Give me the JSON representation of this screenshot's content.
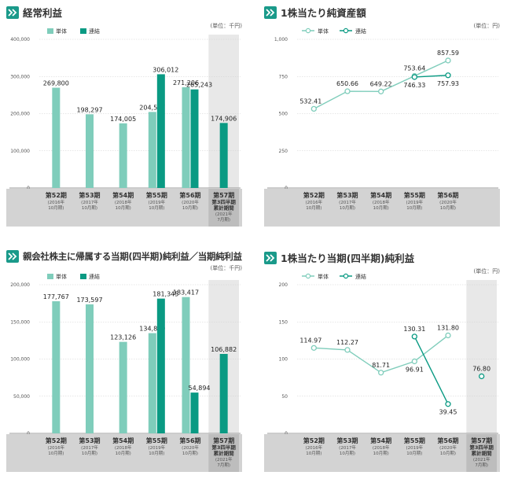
{
  "colors": {
    "single": "#7fcdbb",
    "consolidated": "#0a9a83",
    "footer": "#d3d3d3",
    "accent": "#1a9a8a",
    "shade": "#e8e8e8"
  },
  "icon": "double-chevron-right-icon",
  "legend": {
    "single": "単体",
    "consolidated": "連結"
  },
  "chart_data": [
    {
      "type": "bar",
      "title": "経常利益",
      "unit": "(単位：千円)",
      "ylim": [
        0,
        400000
      ],
      "yticks": [
        "0",
        "100,000",
        "200,000",
        "300,000",
        "400,000"
      ],
      "categories": [
        {
          "name": "第52期",
          "sub": [
            "(2016年",
            "10月期)"
          ]
        },
        {
          "name": "第53期",
          "sub": [
            "(2017年",
            "10月期)"
          ]
        },
        {
          "name": "第54期",
          "sub": [
            "(2018年",
            "10月期)"
          ]
        },
        {
          "name": "第55期",
          "sub": [
            "(2019年",
            "10月期)"
          ]
        },
        {
          "name": "第56期",
          "sub": [
            "(2020年",
            "10月期)"
          ]
        },
        {
          "name": "第57期",
          "sub2": [
            "第3四半期",
            "累計期間"
          ],
          "sub": [
            "(2021年",
            "7月期)"
          ]
        }
      ],
      "series": [
        {
          "name": "単体",
          "values": [
            269800,
            198297,
            174005,
            204587,
            271206,
            null
          ],
          "labels": [
            "269,800",
            "198,297",
            "174,005",
            "204,587",
            "271,206",
            ""
          ]
        },
        {
          "name": "連結",
          "values": [
            null,
            null,
            null,
            306012,
            265243,
            174906
          ],
          "labels": [
            "",
            "",
            "",
            "306,012",
            "265,243",
            "174,906"
          ]
        }
      ]
    },
    {
      "type": "line",
      "title": "1株当たり純資産額",
      "unit": "(単位：円)",
      "ylim": [
        0,
        1000
      ],
      "yticks": [
        "0",
        "250",
        "500",
        "750",
        "1,000"
      ],
      "categories": [
        {
          "name": "第52期",
          "sub": [
            "(2016年",
            "10月期)"
          ]
        },
        {
          "name": "第53期",
          "sub": [
            "(2017年",
            "10月期)"
          ]
        },
        {
          "name": "第54期",
          "sub": [
            "(2018年",
            "10月期)"
          ]
        },
        {
          "name": "第55期",
          "sub": [
            "(2019年",
            "10月期)"
          ]
        },
        {
          "name": "第56期",
          "sub": [
            "(2020年",
            "10月期)"
          ]
        }
      ],
      "series": [
        {
          "name": "単体",
          "values": [
            532.41,
            650.66,
            649.22,
            753.64,
            857.59
          ],
          "labels": [
            "532.41",
            "650.66",
            "649.22",
            "753.64",
            "857.59"
          ]
        },
        {
          "name": "連結",
          "values": [
            null,
            null,
            null,
            746.33,
            757.93
          ],
          "labels": [
            "",
            "",
            "",
            "746.33",
            "757.93"
          ]
        }
      ]
    },
    {
      "type": "bar",
      "title": "親会社株主に帰属する当期(四半期)純利益／当期純利益",
      "unit": "(単位：千円)",
      "ylim": [
        0,
        200000
      ],
      "yticks": [
        "0",
        "50,000",
        "100,000",
        "150,000",
        "200,000"
      ],
      "categories": [
        {
          "name": "第52期",
          "sub": [
            "(2016年",
            "10月期)"
          ]
        },
        {
          "name": "第53期",
          "sub": [
            "(2017年",
            "10月期)"
          ]
        },
        {
          "name": "第54期",
          "sub": [
            "(2018年",
            "10月期)"
          ]
        },
        {
          "name": "第55期",
          "sub": [
            "(2019年",
            "10月期)"
          ]
        },
        {
          "name": "第56期",
          "sub": [
            "(2020年",
            "10月期)"
          ]
        },
        {
          "name": "第57期",
          "sub2": [
            "第3四半期",
            "累計期間"
          ],
          "sub": [
            "(2021年",
            "7月期)"
          ]
        }
      ],
      "series": [
        {
          "name": "単体",
          "values": [
            177767,
            173597,
            123126,
            134869,
            183417,
            null
          ],
          "labels": [
            "177,767",
            "173,597",
            "123,126",
            "134,869",
            "183,417",
            ""
          ]
        },
        {
          "name": "連結",
          "values": [
            null,
            null,
            null,
            181345,
            54894,
            106882
          ],
          "labels": [
            "",
            "",
            "",
            "181,345",
            "54,894",
            "106,882"
          ]
        }
      ]
    },
    {
      "type": "line",
      "title": "1株当たり当期(四半期)純利益",
      "unit": "(単位：円)",
      "ylim": [
        0,
        200
      ],
      "yticks": [
        "0",
        "50",
        "100",
        "150",
        "200"
      ],
      "categories": [
        {
          "name": "第52期",
          "sub": [
            "(2016年",
            "10月期)"
          ]
        },
        {
          "name": "第53期",
          "sub": [
            "(2017年",
            "10月期)"
          ]
        },
        {
          "name": "第54期",
          "sub": [
            "(2018年",
            "10月期)"
          ]
        },
        {
          "name": "第55期",
          "sub": [
            "(2019年",
            "10月期)"
          ]
        },
        {
          "name": "第56期",
          "sub": [
            "(2020年",
            "10月期)"
          ]
        },
        {
          "name": "第57期",
          "sub2": [
            "第3四半期",
            "累計期間"
          ],
          "sub": [
            "(2021年",
            "7月期)"
          ]
        }
      ],
      "series": [
        {
          "name": "単体",
          "values": [
            114.97,
            112.27,
            81.71,
            96.91,
            131.8,
            null
          ],
          "labels": [
            "114.97",
            "112.27",
            "81.71",
            "96.91",
            "131.80",
            ""
          ]
        },
        {
          "name": "連結",
          "values": [
            null,
            null,
            null,
            130.31,
            39.45,
            76.8
          ],
          "labels": [
            "",
            "",
            "",
            "130.31",
            "39.45",
            "76.80"
          ]
        }
      ]
    }
  ]
}
